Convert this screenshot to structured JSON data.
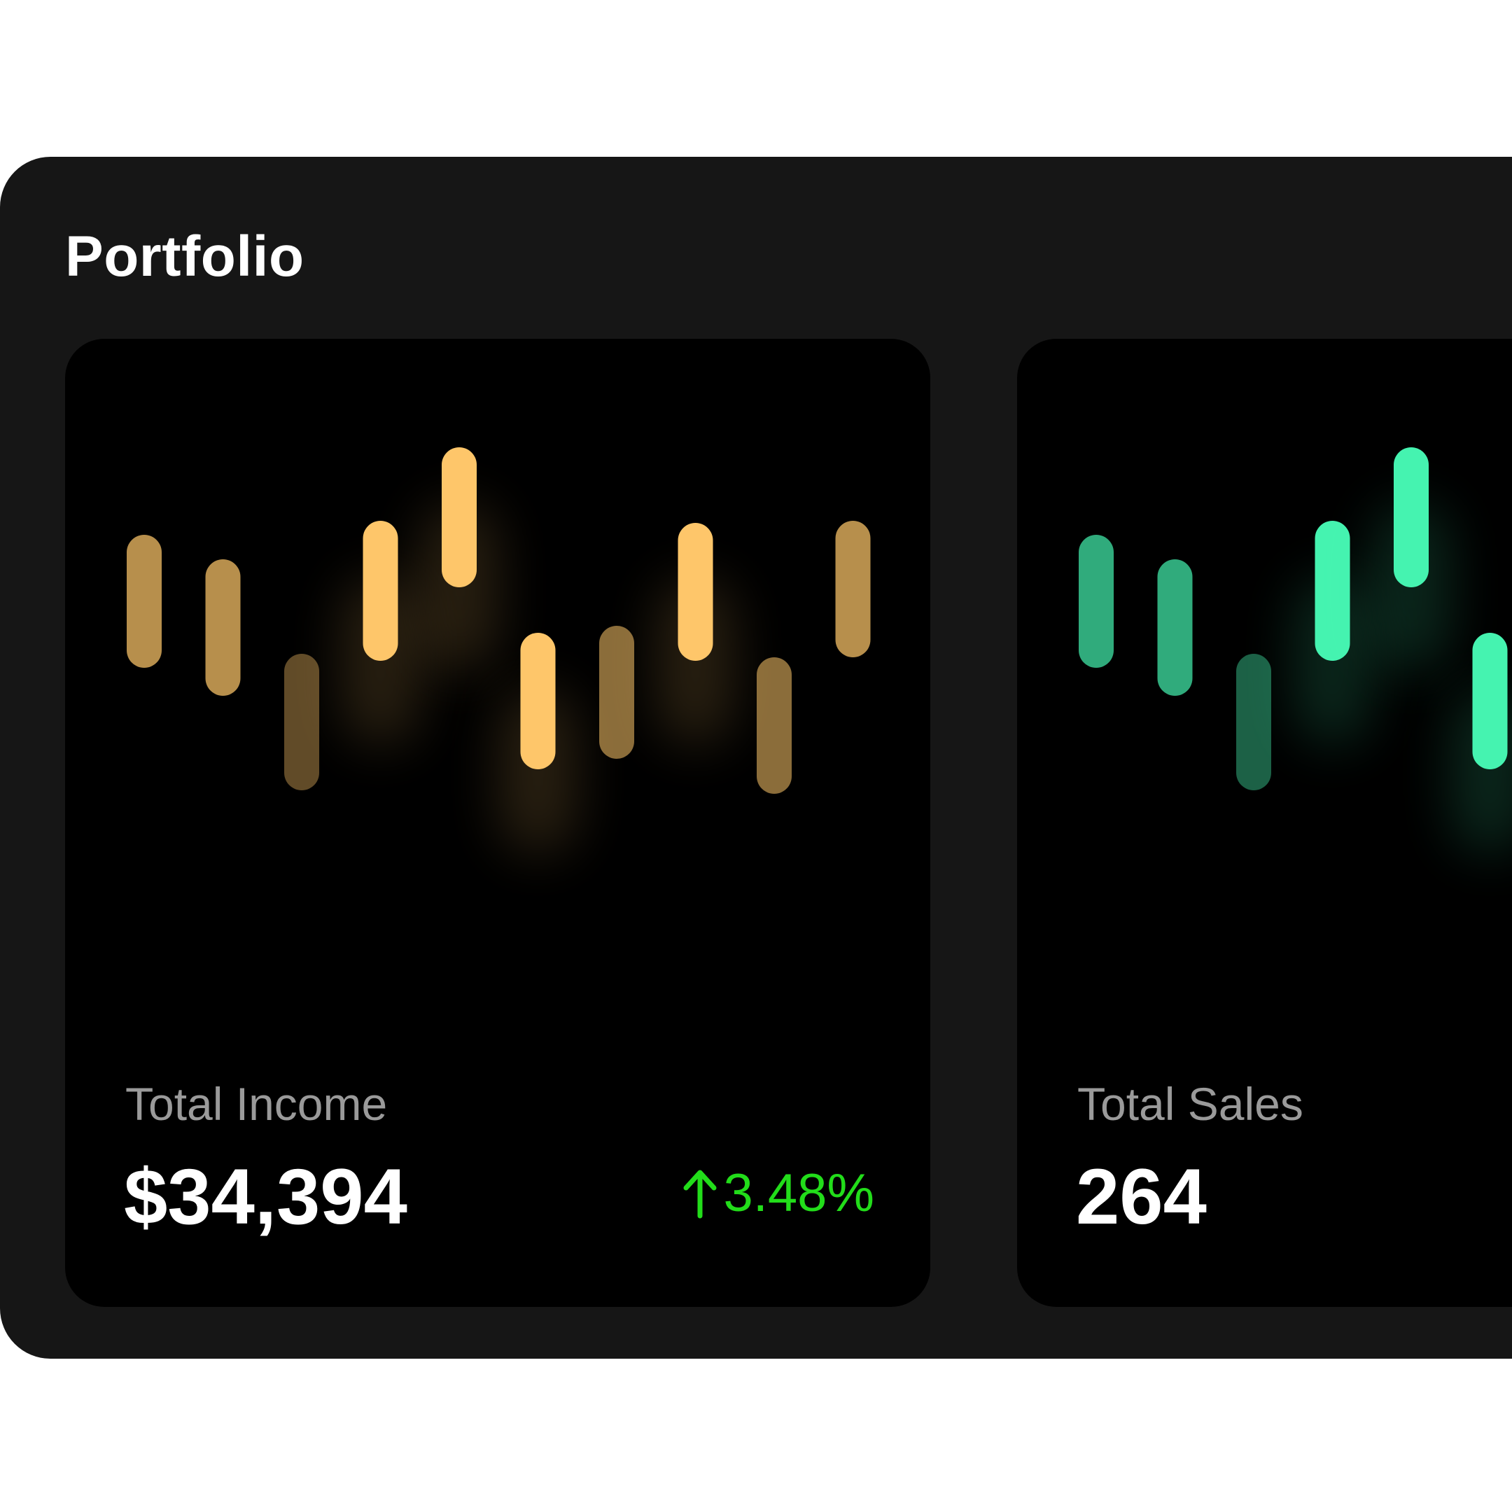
{
  "panel": {
    "title": "Portfolio"
  },
  "colors": {
    "panel_background": "#161616",
    "card_background": "#000000",
    "positive_change": "#22dd1a",
    "income_accent": "#fec66a",
    "sales_accent": "#45f3b0"
  },
  "cards": [
    {
      "label": "Total Income",
      "value": "$34,394",
      "change": "3.48%",
      "change_direction": "up",
      "change_icon": "arrow-up-icon"
    },
    {
      "label": "Total Sales",
      "value": "264"
    }
  ],
  "chart_data": [
    {
      "type": "bar",
      "name": "income-range-bars",
      "color": "#fec66a",
      "y_axis": "inverted",
      "ylim": [
        0,
        1000
      ],
      "bars": [
        {
          "low": 280,
          "high": 470,
          "brightness": 0.72
        },
        {
          "low": 315,
          "high": 510,
          "brightness": 0.72
        },
        {
          "low": 450,
          "high": 645,
          "brightness": 0.38
        },
        {
          "low": 260,
          "high": 460,
          "brightness": 1.0
        },
        {
          "low": 155,
          "high": 355,
          "brightness": 1.0
        },
        {
          "low": 420,
          "high": 615,
          "brightness": 1.0
        },
        {
          "low": 410,
          "high": 600,
          "brightness": 0.55
        },
        {
          "low": 263,
          "high": 460,
          "brightness": 1.0
        },
        {
          "low": 455,
          "high": 650,
          "brightness": 0.55
        },
        {
          "low": 260,
          "high": 455,
          "brightness": 0.72
        }
      ]
    },
    {
      "type": "bar",
      "name": "sales-range-bars",
      "color": "#45f3b0",
      "y_axis": "inverted",
      "ylim": [
        0,
        1000
      ],
      "bars": [
        {
          "low": 280,
          "high": 470,
          "brightness": 0.7
        },
        {
          "low": 315,
          "high": 510,
          "brightness": 0.7
        },
        {
          "low": 450,
          "high": 645,
          "brightness": 0.4
        },
        {
          "low": 260,
          "high": 460,
          "brightness": 1.0
        },
        {
          "low": 155,
          "high": 355,
          "brightness": 1.0
        },
        {
          "low": 420,
          "high": 615,
          "brightness": 1.0
        }
      ]
    }
  ]
}
